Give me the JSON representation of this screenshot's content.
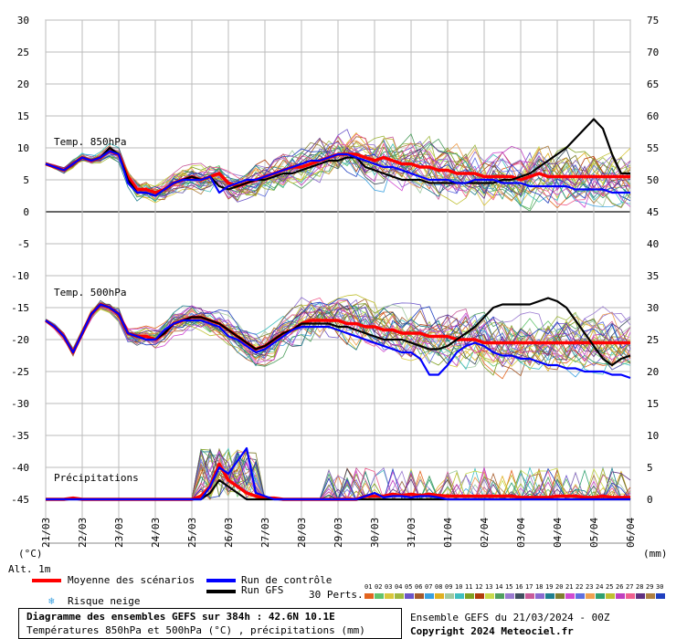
{
  "chart_data": {
    "type": "line",
    "title": "Diagramme des ensembles GEFS sur 384h : 42.6N 10.1E",
    "subtitle": "Températures 850hPa et 500hPa (°C) , précipitations (mm)",
    "left_axis": {
      "unit_label": "(°C)",
      "ticks": [
        30,
        25,
        20,
        15,
        10,
        5,
        0,
        -5,
        -10,
        -15,
        -20,
        -25,
        -30,
        -35,
        -40,
        -45
      ],
      "ylim": [
        -45,
        30
      ]
    },
    "right_axis": {
      "unit_label": "(mm)",
      "ticks": [
        75,
        70,
        65,
        60,
        55,
        50,
        45,
        40,
        35,
        30,
        25,
        20,
        15,
        10,
        5,
        0
      ],
      "ylim": [
        0,
        75
      ]
    },
    "x_ticks": [
      "21/03",
      "22/03",
      "23/03",
      "24/03",
      "25/03",
      "26/03",
      "27/03",
      "28/03",
      "29/03",
      "30/03",
      "31/03",
      "01/04",
      "02/04",
      "03/04",
      "04/04",
      "05/04",
      "06/04"
    ],
    "panel_labels": {
      "t850": "Temp. 850hPa",
      "t500": "Temp. 500hPa",
      "precip": "Précipitations"
    },
    "alt_label": "Alt. 1m",
    "series": [
      {
        "name": "Moyenne des scénarios",
        "color": "#ff0000",
        "panel": "t850",
        "values": [
          7.5,
          7,
          6.5,
          7.5,
          8.5,
          8,
          8.5,
          9.5,
          9,
          5.5,
          3.5,
          3.5,
          3,
          3.5,
          4.5,
          5,
          5.5,
          5,
          5.5,
          6,
          4.5,
          4,
          4.5,
          5,
          5.5,
          6,
          6.5,
          7,
          7,
          7.5,
          8,
          8.5,
          9,
          9,
          9,
          8.5,
          8,
          8.5,
          8,
          7.5,
          7.5,
          7,
          7,
          6.5,
          6.5,
          6,
          6,
          6,
          5.5,
          5.5,
          5.5,
          5.5,
          5,
          5.5,
          6,
          5.5,
          5.5,
          5.5,
          5.5,
          5.5,
          5.5,
          5.5,
          5.5,
          5.5,
          5.5
        ]
      },
      {
        "name": "Run GFS",
        "color": "#000000",
        "panel": "t850",
        "values": [
          7.5,
          7,
          6.5,
          7.5,
          8.5,
          8,
          8.5,
          10,
          9,
          5,
          3,
          3,
          2.5,
          3.5,
          4.5,
          5,
          5.5,
          5,
          5.5,
          4,
          3.5,
          4,
          4.5,
          5,
          5,
          5.5,
          6,
          6,
          6.5,
          7,
          7.5,
          8,
          8,
          8.5,
          8.5,
          7,
          6.5,
          6,
          5.5,
          5,
          5,
          5,
          4.5,
          4.5,
          4.5,
          4.5,
          4.5,
          4.5,
          4.5,
          4.5,
          5,
          5,
          5.5,
          6,
          7,
          8,
          9,
          10,
          11.5,
          13,
          14.5,
          13,
          9,
          6,
          6
        ]
      },
      {
        "name": "Run de contrôle",
        "color": "#0000ff",
        "panel": "t850",
        "values": [
          7.5,
          7,
          6.5,
          7.5,
          8.5,
          8,
          8.5,
          9.5,
          9,
          4.5,
          3,
          3,
          2.5,
          3.5,
          4.5,
          5,
          5,
          5,
          5.5,
          3,
          4,
          4.5,
          5,
          5,
          5.5,
          6,
          6.5,
          7,
          7.5,
          8,
          8,
          8.5,
          9,
          9,
          8.5,
          8,
          7.5,
          7,
          7,
          6.5,
          6,
          5.5,
          5,
          5,
          5,
          4.5,
          4.5,
          5,
          5,
          5,
          4.5,
          4.5,
          4.5,
          4,
          4,
          4,
          4,
          4,
          3.5,
          3.5,
          3.5,
          3.5,
          3,
          3,
          3
        ]
      },
      {
        "name": "Moyenne des scénarios",
        "color": "#ff0000",
        "panel": "t500",
        "values": [
          -17,
          -18,
          -19.5,
          -22,
          -19,
          -16,
          -14.5,
          -15,
          -16,
          -19,
          -19.5,
          -19.5,
          -20,
          -19,
          -17.5,
          -17,
          -16.5,
          -16.5,
          -17,
          -17.5,
          -18.5,
          -19.5,
          -20.5,
          -21.5,
          -21,
          -20,
          -19,
          -18.5,
          -17.5,
          -17,
          -17,
          -17,
          -17,
          -17.5,
          -17.5,
          -18,
          -18,
          -18.5,
          -18.5,
          -19,
          -19,
          -19,
          -19.5,
          -19.5,
          -19.5,
          -20,
          -20,
          -20,
          -20.5,
          -20.5,
          -20.5,
          -20.5,
          -20.5,
          -20.5,
          -20.5,
          -20.5,
          -20.5,
          -20.5,
          -20.5,
          -20.5,
          -20.5,
          -20.5,
          -20.5,
          -20.5,
          -20.5
        ]
      },
      {
        "name": "Run GFS",
        "color": "#000000",
        "panel": "t500",
        "values": [
          -17,
          -18,
          -19.5,
          -22,
          -19,
          -16,
          -14.5,
          -15,
          -16,
          -19,
          -19.5,
          -20,
          -20,
          -19,
          -17.5,
          -17,
          -16.5,
          -16.5,
          -17,
          -17.5,
          -18.5,
          -19.5,
          -20.5,
          -21.5,
          -21,
          -20,
          -19,
          -18.5,
          -17.5,
          -17.5,
          -17.5,
          -17.5,
          -18,
          -18,
          -18.5,
          -19,
          -19.5,
          -20,
          -20,
          -20,
          -20.5,
          -21,
          -21.5,
          -21.5,
          -21,
          -20,
          -19,
          -18,
          -16.5,
          -15,
          -14.5,
          -14.5,
          -14.5,
          -14.5,
          -14,
          -13.5,
          -14,
          -15,
          -17,
          -19,
          -21,
          -23,
          -24,
          -23,
          -22.5
        ]
      },
      {
        "name": "Run de contrôle",
        "color": "#0000ff",
        "panel": "t500",
        "values": [
          -17,
          -18,
          -19.5,
          -22,
          -19,
          -16,
          -14.5,
          -15,
          -16,
          -19,
          -19.5,
          -20,
          -20,
          -18.5,
          -17.5,
          -17,
          -17,
          -17,
          -17.5,
          -18,
          -19.5,
          -20,
          -21,
          -22,
          -21.5,
          -20.5,
          -19.5,
          -18.5,
          -18,
          -18,
          -18,
          -18,
          -18.5,
          -19,
          -19.5,
          -20,
          -20.5,
          -21,
          -21.5,
          -22,
          -22,
          -23,
          -25.5,
          -25.5,
          -24,
          -22,
          -21,
          -20.5,
          -21,
          -22,
          -22.5,
          -22.5,
          -23,
          -23,
          -23.5,
          -24,
          -24,
          -24.5,
          -24.5,
          -25,
          -25,
          -25,
          -25.5,
          -25.5,
          -26
        ]
      },
      {
        "name": "Moyenne des scénarios",
        "color": "#ff0000",
        "panel": "precip",
        "values": [
          0,
          0,
          0,
          0.2,
          0,
          0,
          0,
          0,
          0,
          0,
          0,
          0,
          0,
          0,
          0,
          0,
          0,
          0.5,
          2,
          5.5,
          3,
          2,
          1,
          0.5,
          0.2,
          0.2,
          0,
          0,
          0,
          0,
          0,
          0,
          0,
          0,
          0,
          0.5,
          0.5,
          0.5,
          0.8,
          0.6,
          0.8,
          0.6,
          0.8,
          0.6,
          0.5,
          0.5,
          0.5,
          0.5,
          0.5,
          0.5,
          0.5,
          0.5,
          0.3,
          0.3,
          0.3,
          0.3,
          0.5,
          0.5,
          0.5,
          0.3,
          0.3,
          0.5,
          0.3,
          0.3,
          0.3
        ]
      },
      {
        "name": "Run GFS",
        "color": "#000000",
        "panel": "precip",
        "values": [
          0,
          0,
          0,
          0,
          0,
          0,
          0,
          0,
          0,
          0,
          0,
          0,
          0,
          0,
          0,
          0,
          0,
          0,
          1,
          3,
          2,
          1,
          0,
          0,
          0,
          0,
          0,
          0,
          0,
          0,
          0,
          0,
          0,
          0,
          0,
          0,
          0,
          0,
          0,
          0,
          0,
          0,
          0,
          0,
          0,
          0,
          0,
          0,
          0,
          0,
          0,
          0,
          0,
          0,
          0,
          0,
          0,
          0,
          0,
          0,
          0,
          0,
          0,
          0,
          0
        ]
      },
      {
        "name": "Run de contrôle",
        "color": "#0000ff",
        "panel": "precip",
        "values": [
          0,
          0,
          0,
          0,
          0,
          0,
          0,
          0,
          0,
          0,
          0,
          0,
          0,
          0,
          0,
          0,
          0,
          0,
          2,
          5,
          4,
          6,
          8,
          1,
          0.5,
          0,
          0,
          0,
          0,
          0,
          0,
          0,
          0,
          0,
          0,
          0.5,
          1,
          0.3,
          0.5,
          0.5,
          0.3,
          0.5,
          0.5,
          0.3,
          0,
          0,
          0,
          0,
          0,
          0,
          0,
          0,
          0,
          0,
          0,
          0,
          0,
          0,
          0,
          0,
          0,
          0,
          0,
          0,
          0
        ]
      }
    ],
    "perturbation_colors": [
      "#e3641e",
      "#62c36c",
      "#d9c63a",
      "#9fb840",
      "#6b55c9",
      "#a55a2a",
      "#3aa0e0",
      "#e0b020",
      "#a0c9a0",
      "#3fbfbf",
      "#7fa020",
      "#b03a0a",
      "#c7d94a",
      "#4f9f5f",
      "#9a7ad0",
      "#3f4f5f",
      "#c85a9a",
      "#8a6ad0",
      "#1f7f8f",
      "#7f7f2f",
      "#d04ad0",
      "#5f6fdf",
      "#efa050",
      "#2fa06f",
      "#bfbf2f",
      "#bf3fbf",
      "#ef5f8f",
      "#603080",
      "#af7f3f",
      "#1f3fbf"
    ],
    "ensemble_count": 30
  },
  "legend": {
    "mean": "Moyenne des scénarios",
    "control": "Run de contrôle",
    "gfs": "Run GFS",
    "snow": "Risque neige",
    "perts_label": "30 Perts.",
    "pert_numbers": [
      "01",
      "02",
      "03",
      "04",
      "05",
      "06",
      "07",
      "08",
      "09",
      "10",
      "11",
      "12",
      "13",
      "14",
      "15",
      "16",
      "17",
      "18",
      "19",
      "20",
      "21",
      "22",
      "23",
      "24",
      "25",
      "26",
      "27",
      "28",
      "29",
      "30"
    ]
  },
  "footer": {
    "title": "Diagramme des ensembles GEFS sur 384h : 42.6N 10.1E",
    "subtitle": "Températures 850hPa et 500hPa (°C) , précipitations (mm)",
    "run_info": "Ensemble GEFS du 21/03/2024 - 00Z",
    "copyright": "Copyright 2024 Meteociel.fr"
  }
}
